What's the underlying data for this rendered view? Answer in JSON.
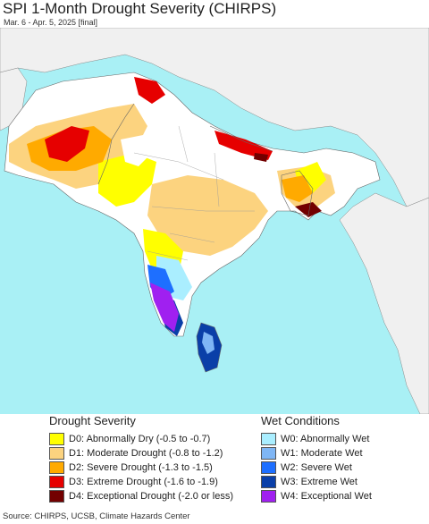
{
  "header": {
    "title": "SPI 1-Month Drought Severity (CHIRPS)",
    "subtitle": "Mar. 6 - Apr. 5, 2025 [final]"
  },
  "legend": {
    "drought": {
      "title": "Drought Severity",
      "items": [
        {
          "label": "D0: Abnormally Dry (-0.5 to -0.7)",
          "color": "#ffff00"
        },
        {
          "label": "D1: Moderate Drought (-0.8 to -1.2)",
          "color": "#fcd37f"
        },
        {
          "label": "D2: Severe Drought (-1.3 to -1.5)",
          "color": "#ffaa00"
        },
        {
          "label": "D3: Extreme Drought (-1.6 to -1.9)",
          "color": "#e60000"
        },
        {
          "label": "D4: Exceptional Drought (-2.0 or less)",
          "color": "#730000"
        }
      ]
    },
    "wet": {
      "title": "Wet Conditions",
      "items": [
        {
          "label": "W0: Abnormally Wet",
          "color": "#aaeeff"
        },
        {
          "label": "W1: Moderate Wet",
          "color": "#7fb6f5"
        },
        {
          "label": "W2: Severe Wet",
          "color": "#1e6fff"
        },
        {
          "label": "W3: Extreme Wet",
          "color": "#0a3fa8"
        },
        {
          "label": "W4: Exceptional Wet",
          "color": "#a020f0"
        }
      ]
    }
  },
  "footer": {
    "source": "Source: CHIRPS, UCSB, Climate Hazards Center"
  },
  "map_colors": {
    "ocean": "#a9f0f5",
    "outside_land": "#f0f0f0",
    "normal_land": "#ffffff",
    "border": "#666666"
  }
}
